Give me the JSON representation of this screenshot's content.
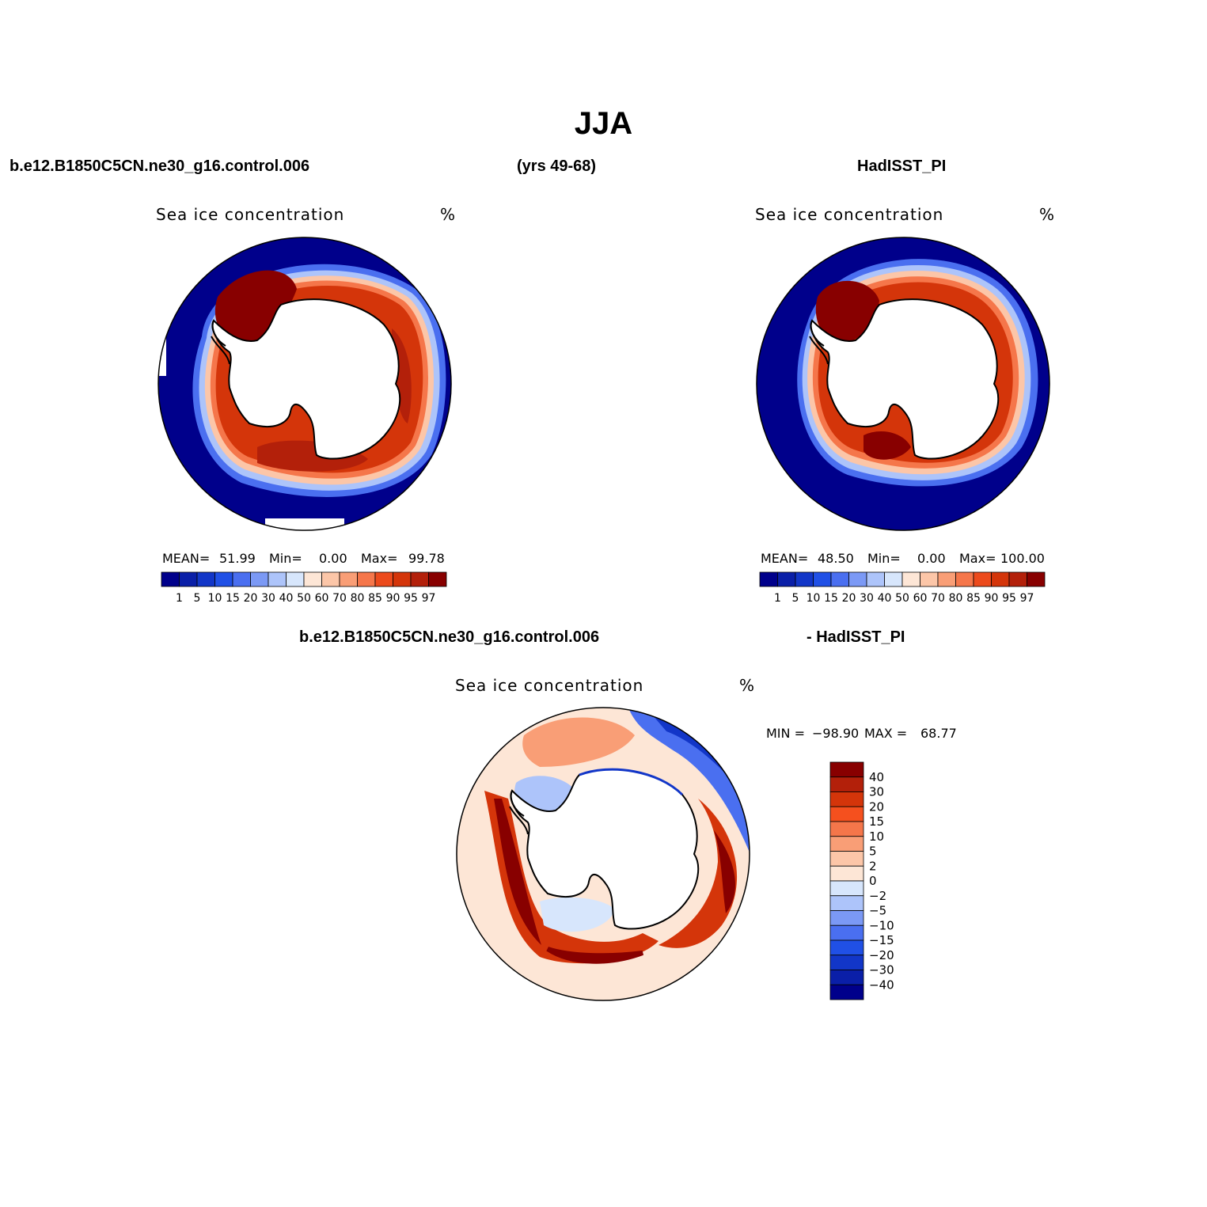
{
  "figure": {
    "title": "JJA",
    "left_header": "b.e12.B1850C5CN.ne30_g16.control.006",
    "center_header": "(yrs 49-68)",
    "right_header": "HadISST_PI",
    "diff_header_left": "b.e12.B1850C5CN.ne30_g16.control.006",
    "diff_header_right": "- HadISST_PI"
  },
  "panels": [
    {
      "id": "model",
      "variable": "Sea ice concentration",
      "units": "%",
      "mean_label": "MEAN=",
      "mean": "51.99",
      "min_label": "Min=",
      "min": "0.00",
      "max_label": "Max=",
      "max": "99.78"
    },
    {
      "id": "obs",
      "variable": "Sea ice concentration",
      "units": "%",
      "mean_label": "MEAN=",
      "mean": "48.50",
      "min_label": "Min=",
      "min": "0.00",
      "max_label": "Max=",
      "max": "100.00"
    },
    {
      "id": "diff",
      "variable": "Sea ice concentration",
      "units": "%",
      "min_label": "MIN =",
      "min": "−98.90",
      "max_label": "MAX =",
      "max": "68.77"
    }
  ],
  "colorbar_main": {
    "levels": [
      "1",
      "5",
      "10",
      "15",
      "20",
      "30",
      "40",
      "50",
      "60",
      "70",
      "80",
      "85",
      "90",
      "95",
      "97"
    ],
    "colors": [
      "#00008b",
      "#0a1fa8",
      "#1236c8",
      "#2050e6",
      "#4a6ff0",
      "#7b99f5",
      "#adc4fa",
      "#d7e6fc",
      "#fde6d6",
      "#fcc6a8",
      "#f99e76",
      "#f5764a",
      "#ec4a1c",
      "#d4350a",
      "#b3200a",
      "#880000"
    ]
  },
  "colorbar_diff": {
    "levels": [
      "40",
      "30",
      "20",
      "15",
      "10",
      "5",
      "2",
      "0",
      "−2",
      "−5",
      "−10",
      "−15",
      "−20",
      "−30",
      "−40"
    ],
    "colors": [
      "#880000",
      "#b3200a",
      "#d4350a",
      "#f5501e",
      "#f5764a",
      "#f99e76",
      "#fcc6a8",
      "#fde6d6",
      "#d7e6fc",
      "#adc4fa",
      "#7b99f5",
      "#4a6ff0",
      "#2050e6",
      "#1236c8",
      "#0a1fa8",
      "#00008b"
    ]
  }
}
